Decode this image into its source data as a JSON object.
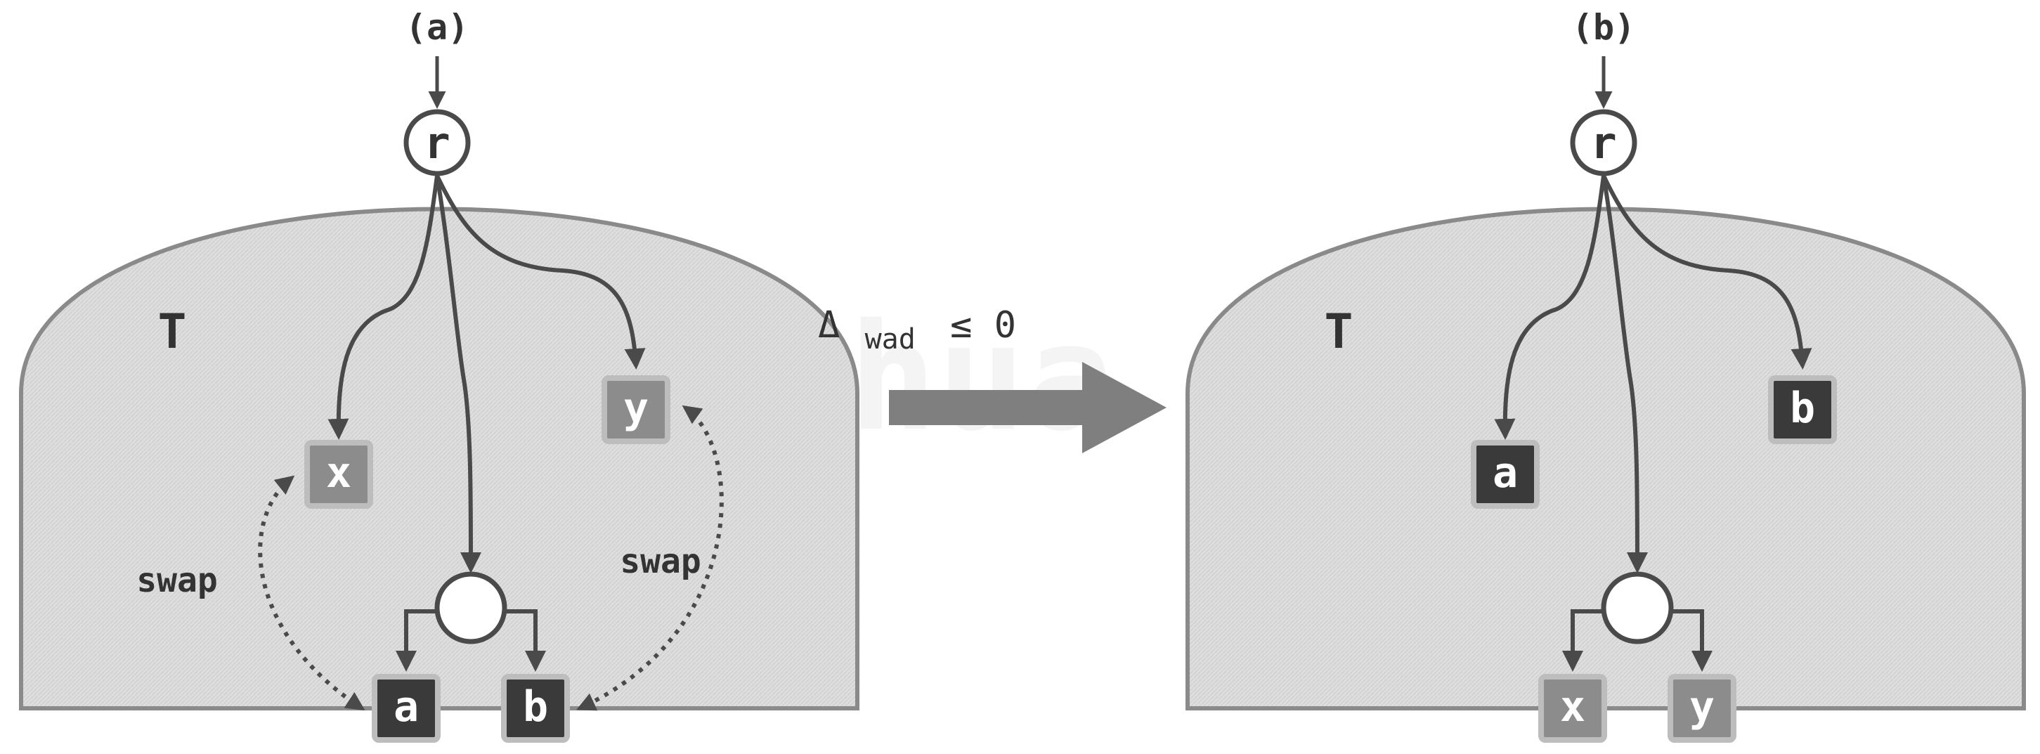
{
  "panel_a": {
    "label": "(a)",
    "root": "r",
    "tree_label": "T",
    "nodes": {
      "x": "x",
      "y": "y",
      "a": "a",
      "b": "b"
    },
    "swap_left": "swap",
    "swap_right": "swap"
  },
  "panel_b": {
    "label": "(b)",
    "root": "r",
    "tree_label": "T",
    "nodes": {
      "a": "a",
      "b": "b",
      "x": "x",
      "y": "y"
    }
  },
  "transition": {
    "delta": "Δ",
    "subscript": "wad",
    "relation": "≤ 0"
  },
  "watermark": "(c) Tsinghua Computing",
  "colors": {
    "tree_fill": "#d9d9d9",
    "tree_stroke": "#8a8a8a",
    "edge": "#4a4a4a",
    "dark_node": "#3a3a3a",
    "light_node": "#8c8c8c",
    "node_border": "#bdbdbd",
    "arrow": "#7f7f7f"
  }
}
